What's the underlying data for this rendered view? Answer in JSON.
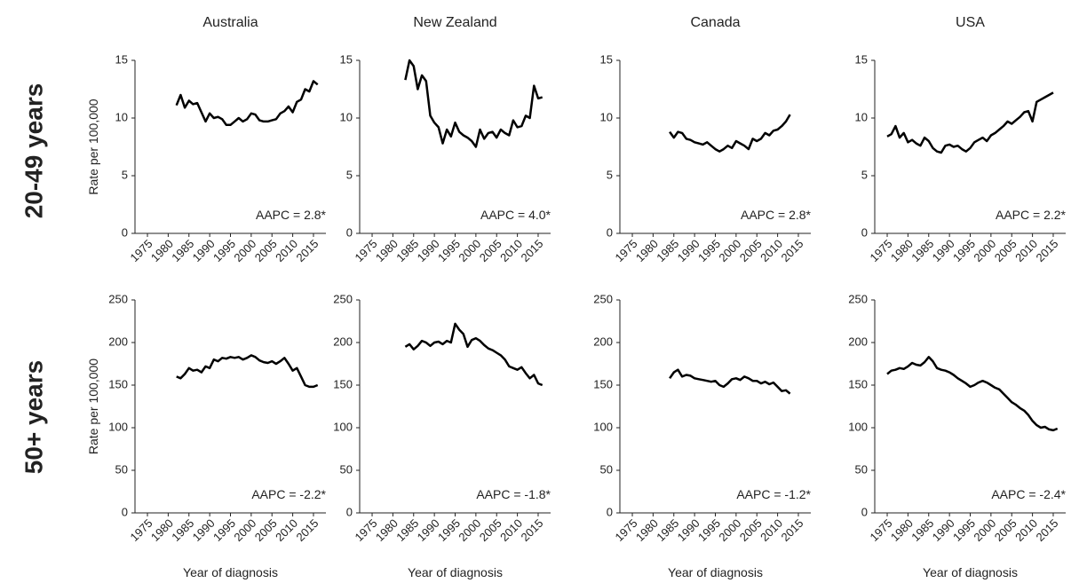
{
  "row_labels": [
    "20-49 years",
    "50+ years"
  ],
  "chart_data": [
    {
      "type": "line",
      "title": "Australia",
      "y_label": "Rate per 100,000",
      "annotation": "AAPC = 2.8*",
      "xlim": [
        1972,
        2018
      ],
      "xticks": [
        1975,
        1980,
        1985,
        1990,
        1995,
        2000,
        2005,
        2010,
        2015
      ],
      "ylim": [
        0,
        15
      ],
      "yticks": [
        0,
        5,
        10,
        15
      ],
      "color": "#000000",
      "x": [
        1982,
        1983,
        1984,
        1985,
        1986,
        1987,
        1988,
        1989,
        1990,
        1991,
        1992,
        1993,
        1994,
        1995,
        1996,
        1997,
        1998,
        1999,
        2000,
        2001,
        2002,
        2003,
        2004,
        2005,
        2006,
        2007,
        2008,
        2009,
        2010,
        2011,
        2012,
        2013,
        2014,
        2015,
        2016
      ],
      "values": [
        11.1,
        12.0,
        10.9,
        11.5,
        11.2,
        11.3,
        10.5,
        9.7,
        10.4,
        10.0,
        10.1,
        9.9,
        9.4,
        9.4,
        9.7,
        10.0,
        9.7,
        9.9,
        10.4,
        10.3,
        9.8,
        9.7,
        9.7,
        9.8,
        9.9,
        10.4,
        10.6,
        11.0,
        10.5,
        11.4,
        11.6,
        12.5,
        12.3,
        13.2,
        12.9
      ]
    },
    {
      "type": "line",
      "title": "New Zealand",
      "annotation": "AAPC = 4.0*",
      "xlim": [
        1972,
        2018
      ],
      "xticks": [
        1975,
        1980,
        1985,
        1990,
        1995,
        2000,
        2005,
        2010,
        2015
      ],
      "ylim": [
        0,
        15
      ],
      "yticks": [
        0,
        5,
        10,
        15
      ],
      "color": "#000000",
      "x": [
        1983,
        1984,
        1985,
        1986,
        1987,
        1988,
        1989,
        1990,
        1991,
        1992,
        1993,
        1994,
        1995,
        1996,
        1997,
        1998,
        1999,
        2000,
        2001,
        2002,
        2003,
        2004,
        2005,
        2006,
        2007,
        2008,
        2009,
        2010,
        2011,
        2012,
        2013,
        2014,
        2015,
        2016
      ],
      "values": [
        13.3,
        15.0,
        14.5,
        12.5,
        13.7,
        13.2,
        10.2,
        9.6,
        9.2,
        7.8,
        9.0,
        8.4,
        9.6,
        8.8,
        8.5,
        8.3,
        8.0,
        7.5,
        9.0,
        8.2,
        8.7,
        8.8,
        8.3,
        9.0,
        8.7,
        8.5,
        9.8,
        9.2,
        9.3,
        10.2,
        10.0,
        12.8,
        11.7,
        11.8
      ]
    },
    {
      "type": "line",
      "title": "Canada",
      "annotation": "AAPC = 2.8*",
      "xlim": [
        1972,
        2018
      ],
      "xticks": [
        1975,
        1980,
        1985,
        1990,
        1995,
        2000,
        2005,
        2010,
        2015
      ],
      "ylim": [
        0,
        15
      ],
      "yticks": [
        0,
        5,
        10,
        15
      ],
      "color": "#000000",
      "x": [
        1984,
        1985,
        1986,
        1987,
        1988,
        1989,
        1990,
        1991,
        1992,
        1993,
        1994,
        1995,
        1996,
        1997,
        1998,
        1999,
        2000,
        2001,
        2002,
        2003,
        2004,
        2005,
        2006,
        2007,
        2008,
        2009,
        2010,
        2011,
        2012,
        2013
      ],
      "values": [
        8.8,
        8.3,
        8.8,
        8.7,
        8.2,
        8.1,
        7.9,
        7.8,
        7.7,
        7.9,
        7.6,
        7.3,
        7.1,
        7.3,
        7.6,
        7.4,
        8.0,
        7.8,
        7.6,
        7.3,
        8.2,
        8.0,
        8.2,
        8.7,
        8.5,
        8.9,
        9.0,
        9.3,
        9.7,
        10.3
      ]
    },
    {
      "type": "line",
      "title": "USA",
      "annotation": "AAPC = 2.2*",
      "xlim": [
        1972,
        2018
      ],
      "xticks": [
        1975,
        1980,
        1985,
        1990,
        1995,
        2000,
        2005,
        2010,
        2015
      ],
      "ylim": [
        0,
        15
      ],
      "yticks": [
        0,
        5,
        10,
        15
      ],
      "color": "#000000",
      "x": [
        1975,
        1976,
        1977,
        1978,
        1979,
        1980,
        1981,
        1982,
        1983,
        1984,
        1985,
        1986,
        1987,
        1988,
        1989,
        1990,
        1991,
        1992,
        1993,
        1994,
        1995,
        1996,
        1997,
        1998,
        1999,
        2000,
        2001,
        2002,
        2003,
        2004,
        2005,
        2006,
        2007,
        2008,
        2009,
        2010,
        2011,
        2012,
        2013,
        2014,
        2015
      ],
      "values": [
        8.4,
        8.6,
        9.3,
        8.3,
        8.7,
        7.9,
        8.1,
        7.8,
        7.6,
        8.3,
        8.0,
        7.4,
        7.1,
        7.0,
        7.6,
        7.7,
        7.5,
        7.6,
        7.3,
        7.1,
        7.4,
        7.9,
        8.1,
        8.3,
        8.0,
        8.5,
        8.7,
        9.0,
        9.3,
        9.7,
        9.5,
        9.8,
        10.1,
        10.5,
        10.6,
        9.7,
        11.4,
        11.6,
        11.8,
        12.0,
        12.2
      ]
    },
    {
      "type": "line",
      "y_label": "Rate per 100,000",
      "x_label": "Year of diagnosis",
      "annotation": "AAPC = -2.2*",
      "xlim": [
        1972,
        2018
      ],
      "xticks": [
        1975,
        1980,
        1985,
        1990,
        1995,
        2000,
        2005,
        2010,
        2015
      ],
      "ylim": [
        0,
        250
      ],
      "yticks": [
        0,
        50,
        100,
        150,
        200,
        250
      ],
      "color": "#000000",
      "x": [
        1982,
        1983,
        1984,
        1985,
        1986,
        1987,
        1988,
        1989,
        1990,
        1991,
        1992,
        1993,
        1994,
        1995,
        1996,
        1997,
        1998,
        1999,
        2000,
        2001,
        2002,
        2003,
        2004,
        2005,
        2006,
        2007,
        2008,
        2009,
        2010,
        2011,
        2012,
        2013,
        2014,
        2015,
        2016
      ],
      "values": [
        160,
        158,
        163,
        170,
        167,
        168,
        165,
        172,
        170,
        180,
        178,
        182,
        181,
        183,
        182,
        183,
        180,
        182,
        185,
        183,
        179,
        177,
        176,
        178,
        175,
        178,
        182,
        175,
        167,
        170,
        160,
        150,
        148,
        148,
        150
      ]
    },
    {
      "type": "line",
      "x_label": "Year of diagnosis",
      "annotation": "AAPC = -1.8*",
      "xlim": [
        1972,
        2018
      ],
      "xticks": [
        1975,
        1980,
        1985,
        1990,
        1995,
        2000,
        2005,
        2010,
        2015
      ],
      "ylim": [
        0,
        250
      ],
      "yticks": [
        0,
        50,
        100,
        150,
        200,
        250
      ],
      "color": "#000000",
      "x": [
        1983,
        1984,
        1985,
        1986,
        1987,
        1988,
        1989,
        1990,
        1991,
        1992,
        1993,
        1994,
        1995,
        1996,
        1997,
        1998,
        1999,
        2000,
        2001,
        2002,
        2003,
        2004,
        2005,
        2006,
        2007,
        2008,
        2009,
        2010,
        2011,
        2012,
        2013,
        2014,
        2015,
        2016
      ],
      "values": [
        195,
        198,
        192,
        196,
        202,
        200,
        196,
        200,
        201,
        198,
        202,
        200,
        222,
        215,
        210,
        195,
        203,
        205,
        202,
        197,
        193,
        191,
        188,
        185,
        180,
        172,
        170,
        168,
        171,
        164,
        158,
        162,
        152,
        150
      ]
    },
    {
      "type": "line",
      "x_label": "Year of diagnosis",
      "annotation": "AAPC = -1.2*",
      "xlim": [
        1972,
        2018
      ],
      "xticks": [
        1975,
        1980,
        1985,
        1990,
        1995,
        2000,
        2005,
        2010,
        2015
      ],
      "ylim": [
        0,
        250
      ],
      "yticks": [
        0,
        50,
        100,
        150,
        200,
        250
      ],
      "color": "#000000",
      "x": [
        1984,
        1985,
        1986,
        1987,
        1988,
        1989,
        1990,
        1991,
        1992,
        1993,
        1994,
        1995,
        1996,
        1997,
        1998,
        1999,
        2000,
        2001,
        2002,
        2003,
        2004,
        2005,
        2006,
        2007,
        2008,
        2009,
        2010,
        2011,
        2012,
        2013
      ],
      "values": [
        158,
        165,
        168,
        160,
        162,
        161,
        158,
        157,
        156,
        155,
        154,
        155,
        150,
        148,
        152,
        157,
        158,
        156,
        160,
        158,
        155,
        155,
        152,
        154,
        151,
        153,
        148,
        143,
        144,
        140
      ]
    },
    {
      "type": "line",
      "x_label": "Year of diagnosis",
      "annotation": "AAPC = -2.4*",
      "xlim": [
        1972,
        2018
      ],
      "xticks": [
        1975,
        1980,
        1985,
        1990,
        1995,
        2000,
        2005,
        2010,
        2015
      ],
      "ylim": [
        0,
        250
      ],
      "yticks": [
        0,
        50,
        100,
        150,
        200,
        250
      ],
      "color": "#000000",
      "x": [
        1975,
        1976,
        1977,
        1978,
        1979,
        1980,
        1981,
        1982,
        1983,
        1984,
        1985,
        1986,
        1987,
        1988,
        1989,
        1990,
        1991,
        1992,
        1993,
        1994,
        1995,
        1996,
        1997,
        1998,
        1999,
        2000,
        2001,
        2002,
        2003,
        2004,
        2005,
        2006,
        2007,
        2008,
        2009,
        2010,
        2011,
        2012,
        2013,
        2014,
        2015,
        2016
      ],
      "values": [
        163,
        167,
        168,
        170,
        169,
        172,
        176,
        174,
        173,
        177,
        183,
        178,
        170,
        168,
        167,
        165,
        162,
        158,
        155,
        152,
        148,
        150,
        153,
        155,
        153,
        150,
        147,
        145,
        140,
        135,
        130,
        127,
        123,
        120,
        115,
        108,
        103,
        100,
        101,
        98,
        97,
        99
      ]
    }
  ]
}
